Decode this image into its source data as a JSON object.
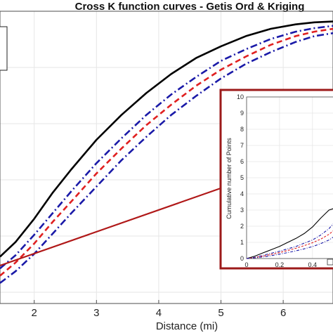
{
  "colors": {
    "observed": "#000000",
    "expected": "#e02020",
    "envelope": "#1a1aa8",
    "connector": "#b01818",
    "inset_frame": "#9c1a1a",
    "grid": "#e6e6e6",
    "axis": "#4d4d4d"
  },
  "chart_data": [
    {
      "type": "line",
      "title": "Cross K function curves - Getis Ord & Kriging",
      "xlabel": "Distance (mi)",
      "ylabel": "",
      "x_tick_labels": [
        "2",
        "3",
        "4",
        "5",
        "6"
      ],
      "xlim": [
        1.45,
        6.8
      ],
      "ylim": [
        0,
        1
      ],
      "grid": true,
      "legend": "top-left (box, cropped)",
      "x": [
        1.45,
        1.7,
        2.0,
        2.3,
        2.6,
        3.0,
        3.4,
        3.8,
        4.2,
        4.6,
        5.0,
        5.4,
        5.8,
        6.2,
        6.5,
        6.8
      ],
      "series": [
        {
          "style": "solid",
          "values": [
            0.16,
            0.21,
            0.29,
            0.38,
            0.46,
            0.56,
            0.645,
            0.72,
            0.785,
            0.84,
            0.88,
            0.915,
            0.94,
            0.955,
            0.962,
            0.965
          ]
        },
        {
          "style": "dash-dot",
          "values": [
            0.12,
            0.165,
            0.235,
            0.31,
            0.385,
            0.48,
            0.565,
            0.645,
            0.715,
            0.775,
            0.83,
            0.87,
            0.905,
            0.93,
            0.942,
            0.95
          ]
        },
        {
          "style": "dashed",
          "values": [
            0.095,
            0.14,
            0.205,
            0.28,
            0.35,
            0.445,
            0.53,
            0.61,
            0.68,
            0.745,
            0.8,
            0.845,
            0.885,
            0.915,
            0.93,
            0.94
          ]
        },
        {
          "style": "dash-dot",
          "values": [
            0.07,
            0.11,
            0.17,
            0.24,
            0.31,
            0.4,
            0.49,
            0.57,
            0.645,
            0.71,
            0.77,
            0.82,
            0.86,
            0.895,
            0.915,
            0.925
          ]
        }
      ]
    },
    {
      "type": "line",
      "title": "",
      "xlabel": "",
      "ylabel": "Cumulative number of Points",
      "x_tick_labels": [
        "0",
        "0.2",
        "0.4"
      ],
      "y_tick_labels": [
        "0",
        "1",
        "2",
        "3",
        "4",
        "5",
        "6",
        "7",
        "8",
        "9",
        "10"
      ],
      "xlim": [
        0,
        0.55
      ],
      "ylim": [
        0,
        10
      ],
      "grid": true,
      "x": [
        0,
        0.05,
        0.1,
        0.15,
        0.2,
        0.25,
        0.3,
        0.35,
        0.4,
        0.45,
        0.5,
        0.53
      ],
      "series": [
        {
          "style": "solid",
          "values": [
            0,
            0.15,
            0.35,
            0.55,
            0.75,
            1.0,
            1.25,
            1.55,
            1.95,
            2.5,
            3.0,
            3.1
          ]
        },
        {
          "style": "dash-dot",
          "values": [
            0,
            0.08,
            0.2,
            0.33,
            0.45,
            0.6,
            0.75,
            0.95,
            1.15,
            1.45,
            1.85,
            2.2
          ]
        },
        {
          "style": "dashed",
          "values": [
            0,
            0.06,
            0.15,
            0.26,
            0.37,
            0.5,
            0.64,
            0.8,
            0.98,
            1.2,
            1.5,
            1.75
          ]
        },
        {
          "style": "dash-dot",
          "values": [
            0,
            0.04,
            0.1,
            0.18,
            0.27,
            0.37,
            0.48,
            0.6,
            0.74,
            0.92,
            1.15,
            1.35
          ]
        }
      ]
    }
  ]
}
